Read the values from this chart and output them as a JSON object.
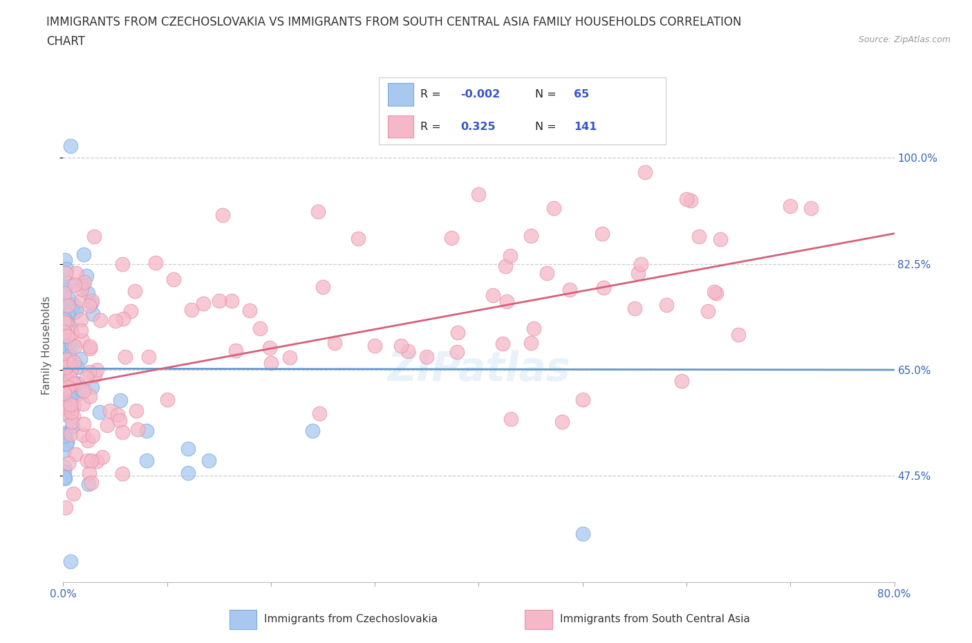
{
  "title_line1": "IMMIGRANTS FROM CZECHOSLOVAKIA VS IMMIGRANTS FROM SOUTH CENTRAL ASIA FAMILY HOUSEHOLDS CORRELATION",
  "title_line2": "CHART",
  "source": "Source: ZipAtlas.com",
  "ylabel": "Family Households",
  "legend_label1": "Immigrants from Czechoslovakia",
  "legend_label2": "Immigrants from South Central Asia",
  "R1": -0.002,
  "N1": 65,
  "R2": 0.325,
  "N2": 141,
  "xlim": [
    0.0,
    0.8
  ],
  "ylim": [
    0.3,
    1.08
  ],
  "yticks": [
    0.475,
    0.65,
    0.825,
    1.0
  ],
  "ytick_labels": [
    "47.5%",
    "65.0%",
    "82.5%",
    "100.0%"
  ],
  "xticks": [
    0.0,
    0.1,
    0.2,
    0.3,
    0.4,
    0.5,
    0.6,
    0.7,
    0.8
  ],
  "xtick_labels": [
    "0.0%",
    "",
    "",
    "",
    "",
    "",
    "",
    "",
    "80.0%"
  ],
  "color1": "#a8c8f0",
  "color1_edge": "#7aabdc",
  "color1_line": "#6699cc",
  "color2": "#f5b8c8",
  "color2_edge": "#e891aa",
  "color2_line": "#d4607a",
  "background_color": "#ffffff",
  "grid_color": "#cccccc",
  "title_fontsize": 12,
  "label_fontsize": 11,
  "tick_fontsize": 11,
  "blue_line_y0": 0.652,
  "blue_line_y1": 0.65,
  "pink_line_y0": 0.622,
  "pink_line_y1": 0.875
}
